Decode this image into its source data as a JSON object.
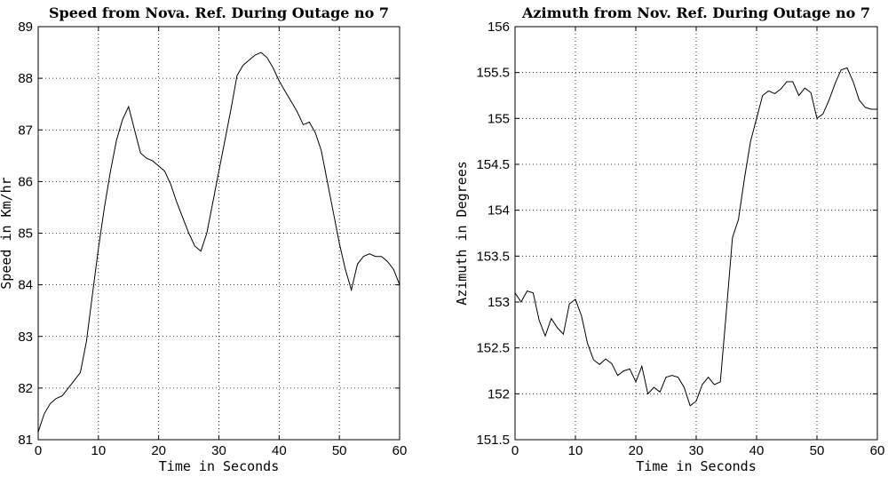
{
  "chart_data": [
    {
      "type": "line",
      "title": "Speed from Nova. Ref. During Outage no 7",
      "xlabel": "Time in Seconds",
      "ylabel": "Speed in Km/hr",
      "xlim": [
        0,
        60
      ],
      "ylim": [
        81,
        89
      ],
      "xticks": [
        0,
        10,
        20,
        30,
        40,
        50,
        60
      ],
      "yticks": [
        81,
        82,
        83,
        84,
        85,
        86,
        87,
        88,
        89
      ],
      "grid": true,
      "x": [
        0,
        1,
        2,
        3,
        4,
        5,
        6,
        7,
        8,
        9,
        10,
        11,
        12,
        13,
        14,
        15,
        16,
        17,
        18,
        19,
        20,
        21,
        22,
        23,
        24,
        25,
        26,
        27,
        28,
        29,
        30,
        31,
        32,
        33,
        34,
        35,
        36,
        37,
        38,
        39,
        40,
        41,
        42,
        43,
        44,
        45,
        46,
        47,
        48,
        49,
        50,
        51,
        52,
        53,
        54,
        55,
        56,
        57,
        58,
        59,
        60
      ],
      "y": [
        81.15,
        81.5,
        81.7,
        81.8,
        81.85,
        82.0,
        82.15,
        82.3,
        82.9,
        83.8,
        84.7,
        85.5,
        86.2,
        86.8,
        87.2,
        87.45,
        87.0,
        86.55,
        86.45,
        86.4,
        86.3,
        86.2,
        85.95,
        85.6,
        85.3,
        85.0,
        84.75,
        84.65,
        85.0,
        85.6,
        86.2,
        86.8,
        87.4,
        88.05,
        88.25,
        88.35,
        88.45,
        88.5,
        88.4,
        88.2,
        87.95,
        87.75,
        87.55,
        87.35,
        87.1,
        87.15,
        86.95,
        86.6,
        86.0,
        85.4,
        84.8,
        84.3,
        83.9,
        84.4,
        84.55,
        84.6,
        84.55,
        84.55,
        84.45,
        84.3,
        84.0
      ]
    },
    {
      "type": "line",
      "title": "Azimuth from Nov. Ref. During Outage no 7",
      "xlabel": "Time in Seconds",
      "ylabel": "Azimuth in Degrees",
      "xlim": [
        0,
        60
      ],
      "ylim": [
        151.5,
        156
      ],
      "xticks": [
        0,
        10,
        20,
        30,
        40,
        50,
        60
      ],
      "yticks": [
        151.5,
        152,
        152.5,
        153,
        153.5,
        154,
        154.5,
        155,
        155.5,
        156
      ],
      "ytick_labels": [
        "151.5",
        "152",
        "152.5",
        "153",
        "153.5",
        "154",
        "154.5",
        "155",
        "155.5",
        "156"
      ],
      "grid": true,
      "x": [
        0,
        1,
        2,
        3,
        4,
        5,
        6,
        7,
        8,
        9,
        10,
        11,
        12,
        13,
        14,
        15,
        16,
        17,
        18,
        19,
        20,
        21,
        22,
        23,
        24,
        25,
        26,
        27,
        28,
        29,
        30,
        31,
        32,
        33,
        34,
        35,
        36,
        37,
        38,
        39,
        40,
        41,
        42,
        43,
        44,
        45,
        46,
        47,
        48,
        49,
        50,
        51,
        52,
        53,
        54,
        55,
        56,
        57,
        58,
        59,
        60
      ],
      "y": [
        153.1,
        153.0,
        153.12,
        153.1,
        152.8,
        152.63,
        152.82,
        152.72,
        152.65,
        152.98,
        153.03,
        152.85,
        152.55,
        152.37,
        152.32,
        152.38,
        152.33,
        152.2,
        152.25,
        152.27,
        152.13,
        152.3,
        152.0,
        152.07,
        152.02,
        152.18,
        152.2,
        152.18,
        152.07,
        151.87,
        151.92,
        152.1,
        152.18,
        152.1,
        152.13,
        152.9,
        153.7,
        153.9,
        154.35,
        154.75,
        155.0,
        155.25,
        155.3,
        155.27,
        155.32,
        155.4,
        155.4,
        155.25,
        155.33,
        155.28,
        155.0,
        155.05,
        155.2,
        155.38,
        155.53,
        155.55,
        155.4,
        155.2,
        155.12,
        155.1,
        155.1
      ]
    }
  ]
}
